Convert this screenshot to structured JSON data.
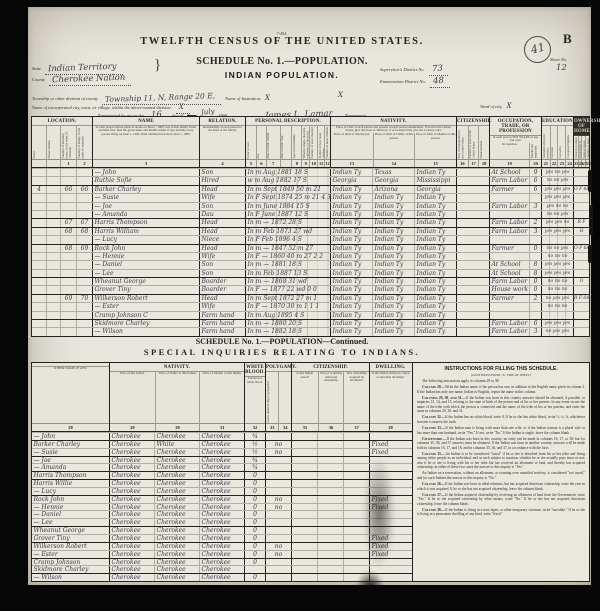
{
  "document": {
    "form_number": "7-494.",
    "title": "TWELFTH CENSUS OF THE UNITED STATES.",
    "schedule_title": "SCHEDULE No. 1.—POPULATION.",
    "subtitle": "INDIAN POPULATION.",
    "page_letter": "B",
    "stamp_value": "41",
    "fields": {
      "state_label": "State",
      "state_value": "Indian Territory",
      "county_label": "County",
      "county_value": "Cherokee Nation",
      "supervisor_label": "Supervisor's District No.",
      "supervisor_value": "73",
      "enumeration_label": "Enumeration District No.",
      "enumeration_value": "48",
      "sheet_label": "Sheet No.",
      "sheet_value": "12",
      "township_label": "Township or other division of county",
      "township_value": "Township 11, N, Range 20 E,",
      "institution_label": "Name of Institution,",
      "institution_value": "X",
      "city_label": "Name of incorporated city, town, or village, within the above-named division.",
      "city_value": "X",
      "extra_mark": "X",
      "ward_label": "Ward of city,",
      "ward_value": "X",
      "enumerated_label": "Enumerated by me on the",
      "enumerated_day": "16",
      "day_of_label": "day of",
      "month_printed": "June,",
      "month_hw": "July",
      "year_label": "1900,",
      "enumerator_value": "James L. Lamar",
      "enumerator_label": ", Enumerator."
    }
  },
  "table1": {
    "groups": [
      {
        "label": "LOCATION.",
        "cols": [
          "Street.",
          "House number.",
          "Number of dwelling house, in the order of visitation.",
          "Number of family, in the order of visitation."
        ]
      },
      {
        "label": "NAME",
        "note": "of each person whose place of abode on June 1, 1900, was in this family. Enter surname first, then the given name and middle initial, if any. Include every person living on June 1, 1900. Omit children born since June 1, 1900.",
        "cols": [
          ""
        ]
      },
      {
        "label": "RELATION.",
        "note": "Relationship of each person to the head of the family.",
        "cols": [
          ""
        ]
      },
      {
        "label": "PERSONAL DESCRIPTION.",
        "cols": [
          "Color or race.",
          "Sex.",
          "Date of birth: Month.",
          "Date of birth: Year.",
          "Age at last birthday.",
          "Whether single, married, widowed, or divorced.",
          "Number of years married.",
          "Mother of how many children.",
          "Number of these children living."
        ]
      },
      {
        "label": "NATIVITY.",
        "note": "Place of birth of each person and parents of each person enumerated. If born in the United States, give the State or Territory; if of foreign birth, give the Country only.",
        "cols": [
          "Place of birth of this Person.",
          "Place of birth of Father of this person.",
          "Place of birth of Mother of this person."
        ]
      },
      {
        "label": "CITIZENSHIP.",
        "cols": [
          "Year of immigration to the United States.",
          "Number of years in the United States.",
          "Naturalization."
        ]
      },
      {
        "label": "OCCUPATION, TRADE, OR PROFESSION",
        "note": "of each person TEN YEARS of age and over.",
        "cols": [
          "Occupation.",
          "Months not employed."
        ]
      },
      {
        "label": "EDUCATION.",
        "cols": [
          "Attended school (in months).",
          "Can read.",
          "Can write.",
          "Can speak English."
        ]
      },
      {
        "label": "OWNERSHIP OF HOME.",
        "cols": [
          "Owned or rented.",
          "Owned free or mortgaged.",
          "Farm or house.",
          "Number of farm schedule."
        ]
      }
    ],
    "col_numbers": [
      [
        "",
        "",
        "1",
        "2"
      ],
      [
        "3"
      ],
      [
        "4"
      ],
      [
        "5",
        "6",
        "7",
        "",
        "8",
        "9",
        "10",
        "11",
        "12"
      ],
      [
        "13",
        "14",
        "15"
      ],
      [
        "16",
        "17",
        "18"
      ],
      [
        "19",
        "20"
      ],
      [
        "21",
        "22",
        "23",
        "24"
      ],
      [
        "25",
        "26",
        "27",
        "28"
      ]
    ],
    "rows": [
      {
        "name": "— John",
        "rel": "Son",
        "per": "In m Aug 1881 18 S",
        "n1": "Indian Ty",
        "n2": "Texas",
        "n3": "Indian Ty",
        "occ": "At School",
        "mo": "9",
        "edu": "yes no yes"
      },
      {
        "name": "Ruthie Sofie",
        "rel": "Hired",
        "per": "w m Aug 1882 17 S",
        "n1": "Georgia",
        "n2": "Georgia",
        "n3": "Mississippi",
        "occ": "Farm Labor",
        "mo": "6",
        "edu": "no no yes"
      },
      {
        "sep": true,
        "la": "4",
        "dn": "66",
        "fn": "66",
        "name": "Barker Charley",
        "rel": "Head",
        "per": "In m Sept 1849 50 m 21",
        "n1": "Indian Ty",
        "n2": "Arizona",
        "n3": "Georgia",
        "occ": "Farmer",
        "mo": "6",
        "edu": "yes yes yes",
        "own": "O F 68"
      },
      {
        "name": "— Susie",
        "rel": "Wife",
        "per": "In F Sept 1874 25 m 21 4 3",
        "n1": "Indian Ty",
        "n2": "Indian Ty",
        "n3": "Indian Ty",
        "edu": "yes yes yes"
      },
      {
        "name": "— Joe",
        "rel": "Son",
        "per": "In m June 1884 15 S",
        "n1": "Indian Ty",
        "n2": "Indian Ty",
        "n3": "Indian Ty",
        "occ": "Farm Labor",
        "mo": "3",
        "edu": "yes no no"
      },
      {
        "name": "— Amanda",
        "rel": "Dau",
        "per": "In F June 1887 12 S",
        "n1": "Indian Ty",
        "n2": "Indian Ty",
        "n3": "Indian Ty",
        "edu": "no no yes"
      },
      {
        "sep": true,
        "dn": "67",
        "fn": "67",
        "name": "Harris Thompson",
        "rel": "Head",
        "per": "In m — 1872 28 S",
        "n1": "Indian Ty",
        "n2": "Indian Ty",
        "n3": "Indian Ty",
        "occ": "Farm Labor",
        "mo": "2",
        "edu": "yes yes no",
        "own": "R F"
      },
      {
        "sep": true,
        "dn": "68",
        "fn": "68",
        "name": "Harris William",
        "rel": "Head",
        "per": "In m Feb 1873 27 wd",
        "n1": "Indian Ty",
        "n2": "Indian Ty",
        "n3": "Indian Ty",
        "occ": "Farm Labor",
        "mo": "3",
        "edu": "yes yes yes",
        "own": "H"
      },
      {
        "name": "— Lucy",
        "rel": "Niece",
        "per": "In F Feb 1896 4 S",
        "n1": "Indian Ty",
        "n2": "Indian Ty",
        "n3": "Indian Ty"
      },
      {
        "sep": true,
        "dn": "68",
        "fn": "69",
        "name": "Rock John",
        "rel": "Head",
        "per": "In m — 1847 52 m 27",
        "n1": "Indian Ty",
        "n2": "Indian Ty",
        "n3": "Indian Ty",
        "occ": "Farmer",
        "mo": "0",
        "edu": "no no yes",
        "own": "O F 68"
      },
      {
        "name": "— Hennie",
        "rel": "Wife",
        "per": "In F — 1860 40 m 27 2 2",
        "n1": "Indian Ty",
        "n2": "Indian Ty",
        "n3": "Indian Ty",
        "edu": "no no no"
      },
      {
        "name": "— Daniel",
        "rel": "Son",
        "per": "In m — 1881 18 S",
        "n1": "Indian Ty",
        "n2": "Indian Ty",
        "n3": "Indian Ty",
        "occ": "At School",
        "mo": "8",
        "edu": "yes yes yes"
      },
      {
        "name": "— Lee",
        "rel": "Son",
        "per": "In m Feb 1887 13 S",
        "n1": "Indian Ty",
        "n2": "Indian Ty",
        "n3": "Indian Ty",
        "occ": "At School",
        "mo": "8",
        "edu": "yes yes yes"
      },
      {
        "sep": true,
        "name": "Wheanut George",
        "rel": "Boarder",
        "per": "In m — 1868 31 wd",
        "n1": "Indian Ty",
        "n2": "Indian Ty",
        "n3": "Indian Ty",
        "occ": "Farm Labor",
        "mo": "0",
        "edu": "no no no",
        "own": "O"
      },
      {
        "name": "Grover Tiny",
        "rel": "Boarder",
        "per": "In F — 1877 22 wd 0 0",
        "n1": "Indian Ty",
        "n2": "Indian Ty",
        "n3": "Indian Ty",
        "occ": "House work",
        "mo": "0",
        "edu": "no no no"
      },
      {
        "sep": true,
        "dn": "69",
        "fn": "70",
        "name": "Wilkerson Robert",
        "rel": "Head",
        "per": "In m Sept 1872 27 m 1",
        "n1": "Indian Ty",
        "n2": "Indian Ty",
        "n3": "Indian Ty",
        "occ": "Farmer",
        "mo": "2",
        "edu": "no yes yes",
        "own": "R F 64"
      },
      {
        "name": "— Ester",
        "rel": "Wife",
        "per": "In F — 1870 30 m 1 1 1",
        "n1": "Indian Ty",
        "n2": "Indian Ty",
        "n3": "Indian Ty",
        "edu": "no no no"
      },
      {
        "name": "Cramp Johnson C",
        "rel": "Farm hand",
        "per": "In m Aug 1895 4 S",
        "n1": "Indian Ty",
        "n2": "Indian Ty",
        "n3": "Indian Ty"
      },
      {
        "sep": true,
        "name": "Skidmore Charley",
        "rel": "Farm hand",
        "per": "In m — 1880 20 S",
        "n1": "Indian Ty",
        "n2": "Indian Ty",
        "n3": "Indian Ty",
        "occ": "Farm Labor",
        "mo": "6",
        "edu": "yes yes yes"
      },
      {
        "name": "— Wilson",
        "rel": "Farm hand",
        "per": "In m — 1882 18 S",
        "n1": "Indian Ty",
        "n2": "Indian Ty",
        "n3": "Indian Ty",
        "occ": "Farm Labor",
        "mo": "3",
        "edu": "no yes yes"
      }
    ]
  },
  "section2": {
    "title1": "SCHEDULE No. 1.—POPULATION—Continued.",
    "title2": "SPECIAL INQUIRIES RELATING TO INDIANS."
  },
  "table2": {
    "groups": [
      {
        "label": "",
        "cols": [
          "OTHER NAME, IF ANY."
        ]
      },
      {
        "label": "NATIVITY.",
        "cols": [
          "Tribe of this Indian.",
          "Tribe of Father of this Indian.",
          "Tribe of Mother of this Indian."
        ]
      },
      {
        "label": "WHITE BLOOD.",
        "cols": [
          "Fraction of white blood."
        ]
      },
      {
        "label": "POLYGAMY.",
        "cols": [
          "Is this Indian living in polygamy?",
          ""
        ]
      },
      {
        "label": "CITIZENSHIP.",
        "cols": [
          "Is this Indian taxed?",
          "Year of acquiring American citizenship.",
          "Was citizenship acquired by allotment?"
        ]
      },
      {
        "label": "DWELLING.",
        "cols": [
          "Is this Indian living in a fixed or movable dwelling?"
        ]
      }
    ],
    "col_numbers": [
      [
        "28"
      ],
      [
        "29",
        "30",
        "31"
      ],
      [
        "32"
      ],
      [
        "33",
        "34"
      ],
      [
        "35",
        "36",
        "37"
      ],
      [
        "38"
      ]
    ],
    "rows": [
      {
        "name": "— John",
        "tribe": "Cherokee",
        "father": "Cherokee",
        "mother": "Cherokee",
        "blood": "¾"
      },
      {
        "sep": true,
        "name": "Barker Charley",
        "tribe": "Cherokee",
        "father": "White",
        "mother": "Cherokee",
        "blood": "½",
        "poly": "no",
        "dw": "Fixed"
      },
      {
        "name": "— Susie",
        "tribe": "Cherokee",
        "father": "Cherokee",
        "mother": "Cherokee",
        "blood": "½",
        "poly": "no",
        "dw": "Fixed"
      },
      {
        "sep": true,
        "name": "— Joe",
        "tribe": "Cherokee",
        "father": "Cherokee",
        "mother": "Cherokee",
        "blood": "¾"
      },
      {
        "name": "— Amanda",
        "tribe": "Cherokee",
        "father": "Cherokee",
        "mother": "Cherokee",
        "blood": "¾"
      },
      {
        "sep": true,
        "name": "Harris Thompson",
        "tribe": "Cherokee",
        "father": "Cherokee",
        "mother": "Cherokee",
        "blood": "0"
      },
      {
        "sep": true,
        "name": "Harris Willie",
        "tribe": "Cherokee",
        "father": "Cherokee",
        "mother": "Cherokee",
        "blood": "0"
      },
      {
        "name": "— Lucy",
        "tribe": "Cherokee",
        "father": "Cherokee",
        "mother": "Cherokee",
        "blood": "0"
      },
      {
        "sep": true,
        "name": "Rock John",
        "tribe": "Cherokee",
        "father": "Cherokee",
        "mother": "Cherokee",
        "blood": "0",
        "poly": "no",
        "dw": "Fixed"
      },
      {
        "name": "— Hennie",
        "tribe": "Cherokee",
        "father": "Cherokee",
        "mother": "Cherokee",
        "blood": "0",
        "poly": "no",
        "dw": "Fixed"
      },
      {
        "name": "— Daniel",
        "tribe": "Cherokee",
        "father": "Cherokee",
        "mother": "Cherokee",
        "blood": "0"
      },
      {
        "name": "— Lee",
        "tribe": "Cherokee",
        "father": "Cherokee",
        "mother": "Cherokee",
        "blood": "0"
      },
      {
        "sep": true,
        "name": "Wheanut George",
        "tribe": "Cherokee",
        "father": "Cherokee",
        "mother": "Cherokee",
        "blood": "0"
      },
      {
        "name": "Grover Tiny",
        "tribe": "Cherokee",
        "father": "Cherokee",
        "mother": "Cherokee",
        "blood": "0",
        "dw": "Fixed"
      },
      {
        "sep": true,
        "name": "Wilkerson Robert",
        "tribe": "Cherokee",
        "father": "Cherokee",
        "mother": "Cherokee",
        "blood": "0",
        "poly": "no",
        "dw": "Fixed"
      },
      {
        "name": "— Ester",
        "tribe": "Cherokee",
        "father": "Cherokee",
        "mother": "Cherokee",
        "blood": "0",
        "poly": "no",
        "dw": "Fixed"
      },
      {
        "sep": true,
        "name": "Cramp Johnson",
        "tribe": "Cherokee",
        "father": "Cherokee",
        "mother": "Cherokee",
        "blood": "0"
      },
      {
        "name": "Skidmore Charley",
        "tribe": "Cherokee",
        "father": "Cherokee",
        "mother": "Cherokee",
        "blood": ""
      },
      {
        "sep": true,
        "name": "— Wilson",
        "tribe": "Cherokee",
        "father": "Cherokee",
        "mother": "Cherokee",
        "blood": "0"
      }
    ]
  },
  "instructions": {
    "title": "INSTRUCTIONS FOR FILLING THIS SCHEDULE.",
    "subtitle": "(CONTINUED FROM \"A\" SIDE OF SHEET.)",
    "paragraphs": [
      "The following instructions apply to columns 28 to 38:",
      "Column 28.—Write the Indian name, if the person has one, in addition to the English name given in column 2. If the Indian has only one name, Indian or English, repeat the name in this column.",
      "Columns 29, 30, and 31.—If the Indian was born in this country answers should be obtained, if possible, to inquiries 13, 14, and 15, relating to the state of birth of the person and of his or her parents. In any event secure the name of the tribe with which the person is connected and the name of the tribe of his or her parents, and enter the same in columns 29, 30, and 31.",
      "Column 32.—If the Indian has no white blood, write 0. If he or she has white blood, write ½, ¼, ⅛, whichever fraction is nearest the truth.",
      "Column 33.—If the Indian man is living with more than one wife, or if the Indian woman is a plural wife or has more than one husband, write \"Yes.\" If not, write \"No.\" If the Indian is single, leave the column blank.",
      "Citizenship.—If the Indian was born in this country, no entry can be made in columns 16, 17, or 18; but for columns 35, 36, and 37 answers must be obtained. If the Indian was born in another country, answers will be made both in columns 16, 17, and 18, and in columns 35, 36, and 37, in accordance with the facts.",
      "Column 35.—An Indian is to be considered \"taxed\" if he or she is detached from his or her tribe and living among white people as an individual, and as such subject to taxation, whether he or she actually pays taxes or not; also if he or she is living with his or her tribe but has received an allotment of land, and thereby has acquired citizenship; in either of these two cases the answer to this inquiry is \"Yes.\"",
      "An Indian on a reservation, without an allotment, or roaming over unsettled territory, is considered \"not taxed,\" and for such Indians the answer to this inquiry is \"No.\"",
      "Column 36.—If the Indian was born in tribal relations, but has acquired American citizenship, write the year in which it was acquired. If he or she has not acquired citizenship, leave the column blank.",
      "Column 37.—If the Indian acquired citizenship by receiving an allotment of land from the Government, write \"Yes.\" If he or she acquired citizenship by other means, write \"No.\" If he or she has not acquired American citizenship, leave the column blank.",
      "Column 38.—If the Indian is living in a tent, tepee, or other temporary structure, write \"movable.\" If he or she is living in a permanent dwelling of any kind, write \"fixed.\""
    ]
  }
}
